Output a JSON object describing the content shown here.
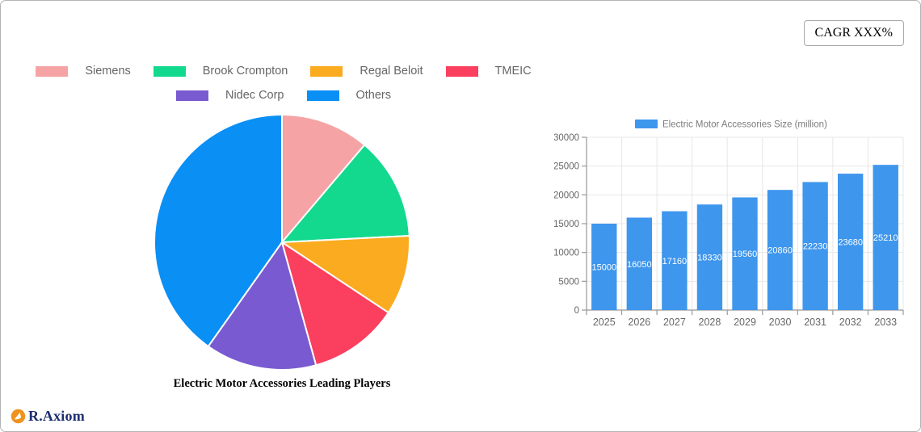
{
  "cagr_badge": "CAGR XXX%",
  "brand": "R.Axiom",
  "chart_data": [
    {
      "type": "pie",
      "title": "Electric Motor Accessories Leading Players",
      "legend_position": "top",
      "direction": "clockwise",
      "start_angle_deg": 0,
      "slices": [
        {
          "label": "Siemens",
          "value": 11.2,
          "color": "#f5a3a5"
        },
        {
          "label": "Brook Crompton",
          "value": 13.0,
          "color": "#12d98e"
        },
        {
          "label": "Regal Beloit",
          "value": 10.1,
          "color": "#fbab1f"
        },
        {
          "label": "TMEIC",
          "value": 11.4,
          "color": "#fa3f5f"
        },
        {
          "label": "Nidec Corp",
          "value": 14.1,
          "color": "#7a5ad0"
        },
        {
          "label": "Others",
          "value": 40.2,
          "color": "#0a8ff5"
        }
      ]
    },
    {
      "type": "bar",
      "series": [
        {
          "name": "Electric Motor Accessories Size (million)",
          "color": "#3e96ed"
        }
      ],
      "categories": [
        "2025",
        "2026",
        "2027",
        "2028",
        "2029",
        "2030",
        "2031",
        "2032",
        "2033"
      ],
      "values": [
        15000,
        16050,
        17160,
        18330,
        19560,
        20860,
        22230,
        23680,
        25210
      ],
      "ylim": [
        0,
        30000
      ],
      "ytick_step": 5000,
      "yticks": [
        0,
        5000,
        10000,
        15000,
        20000,
        25000,
        30000
      ],
      "grid": true,
      "legend_position": "top",
      "bar_label_style": "white-inside-center",
      "axis_color": "#999999",
      "grid_color": "#e7e7e7",
      "tick_label_color": "#666666"
    }
  ]
}
